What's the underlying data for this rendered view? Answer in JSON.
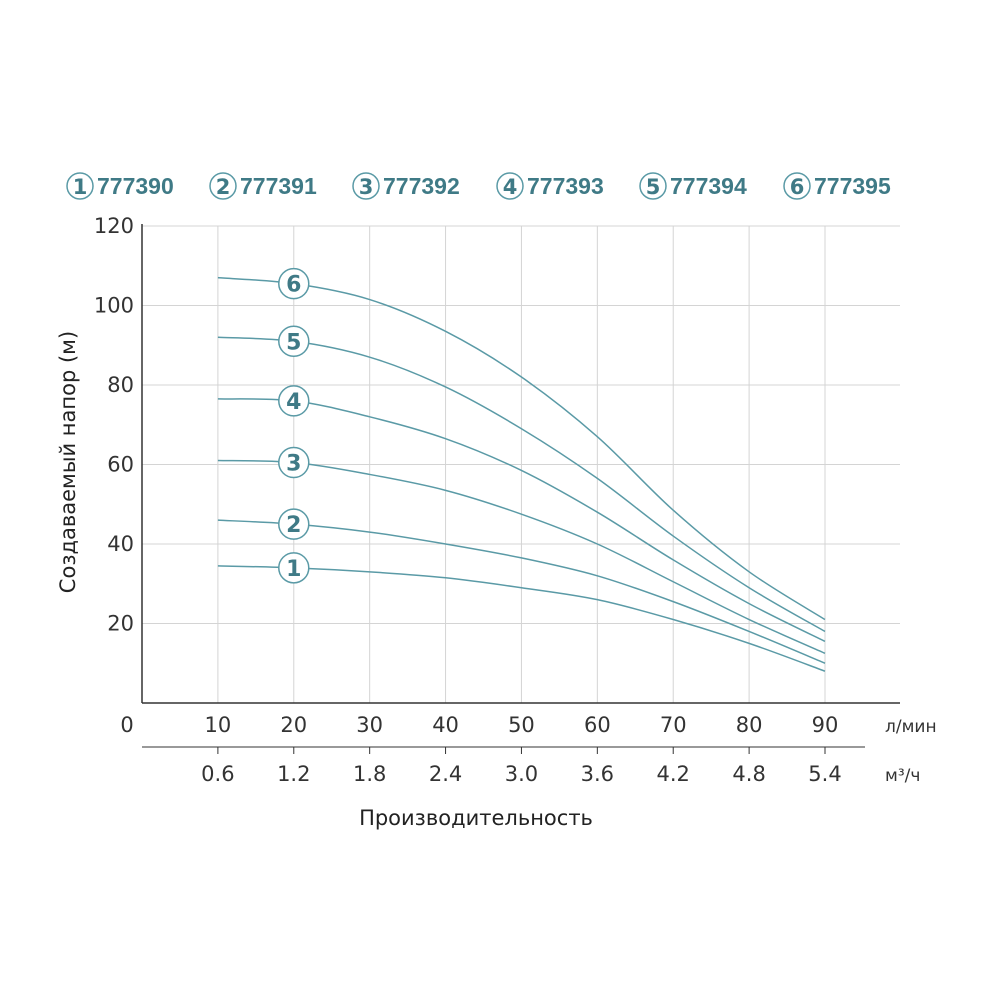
{
  "chart_data": {
    "type": "line",
    "ylabel": "Создаваемый напор (м)",
    "xlabel": "Производительность",
    "x_unit_primary": "л/мин",
    "x_unit_secondary": "м³/ч",
    "y_zero_label": "0",
    "xlim": [
      0,
      90
    ],
    "ylim": [
      0,
      120
    ],
    "grid": true,
    "legend_position": "top",
    "x_ticks_primary": [
      "10",
      "20",
      "30",
      "40",
      "50",
      "60",
      "70",
      "80",
      "90"
    ],
    "x_ticks_secondary": [
      "0.6",
      "1.2",
      "1.8",
      "2.4",
      "3.0",
      "3.6",
      "4.2",
      "4.8",
      "5.4"
    ],
    "y_ticks": [
      "20",
      "40",
      "60",
      "80",
      "100",
      "120"
    ],
    "x": [
      10,
      20,
      30,
      40,
      50,
      60,
      70,
      80,
      90
    ],
    "series": [
      {
        "name": "777390",
        "curve_label": "1",
        "values": [
          34.5,
          34.0,
          33.0,
          31.5,
          29.0,
          26.0,
          21.0,
          15.0,
          8.0
        ]
      },
      {
        "name": "777391",
        "curve_label": "2",
        "values": [
          46.0,
          45.0,
          43.0,
          40.0,
          36.5,
          32.0,
          25.5,
          18.0,
          10.0
        ]
      },
      {
        "name": "777392",
        "curve_label": "3",
        "values": [
          61.0,
          60.5,
          57.5,
          53.5,
          47.5,
          40.0,
          30.5,
          21.0,
          12.5
        ]
      },
      {
        "name": "777393",
        "curve_label": "4",
        "values": [
          76.5,
          76.0,
          72.0,
          66.5,
          58.5,
          48.0,
          36.0,
          25.0,
          15.5
        ]
      },
      {
        "name": "777394",
        "curve_label": "5",
        "values": [
          92.0,
          91.0,
          87.0,
          79.5,
          69.0,
          56.5,
          42.0,
          29.0,
          18.0
        ]
      },
      {
        "name": "777395",
        "curve_label": "6",
        "values": [
          107.0,
          105.5,
          101.5,
          93.5,
          82.0,
          67.0,
          48.5,
          33.0,
          21.0
        ]
      }
    ],
    "colors": {
      "curve": "#5a9aa6",
      "accent": "#3f7a86",
      "grid": "#d4d4d4",
      "axis": "#333333"
    }
  }
}
